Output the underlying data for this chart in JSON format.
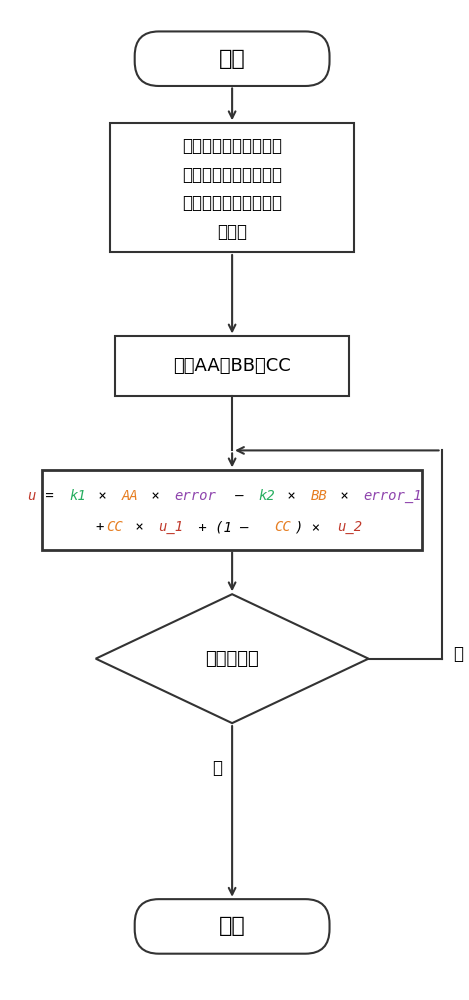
{
  "bg_color": "#ffffff",
  "shape_edge_color": "#333333",
  "shape_face_color": "#ffffff",
  "arrow_color": "#333333",
  "start_text": "开始",
  "stop_text": "停止",
  "box1_lines": [
    "测量系统的时间常数和",
    "纯滞后，并设定期望闭",
    "环系统的时间常数和纯",
    "滞后。"
  ],
  "box2_text": "计算AA，BB，CC",
  "diamond_text": "停止指令？",
  "yes_label": "是",
  "no_label": "否",
  "formula_line1_segments": [
    [
      "u",
      "#c0392b"
    ],
    [
      " = ",
      "#000000"
    ],
    [
      "k1",
      "#27ae60"
    ],
    [
      " × ",
      "#000000"
    ],
    [
      "AA",
      "#e67e22"
    ],
    [
      " × ",
      "#000000"
    ],
    [
      "error",
      "#8e44ad"
    ],
    [
      " – ",
      "#000000"
    ],
    [
      "k2",
      "#27ae60"
    ],
    [
      " × ",
      "#000000"
    ],
    [
      "BB",
      "#e67e22"
    ],
    [
      " × ",
      "#000000"
    ],
    [
      "error_1",
      "#8e44ad"
    ]
  ],
  "formula_line2_segments": [
    [
      "+",
      "#000000"
    ],
    [
      "CC",
      "#e67e22"
    ],
    [
      " × ",
      "#000000"
    ],
    [
      "u_1",
      "#c0392b"
    ],
    [
      " + (1 – ",
      "#000000"
    ],
    [
      "CC",
      "#e67e22"
    ],
    [
      ") × ",
      "#000000"
    ],
    [
      "u_2",
      "#c0392b"
    ]
  ]
}
